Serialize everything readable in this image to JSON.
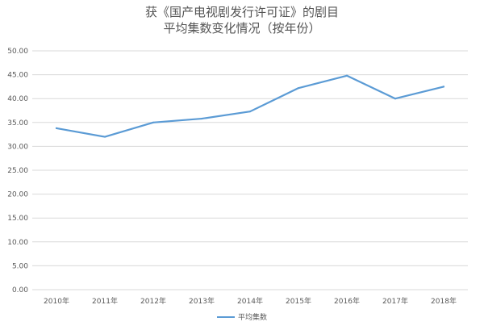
{
  "chart_data": {
    "type": "line",
    "title": "获《国产电视剧发行许可证》的剧目",
    "subtitle": "平均集数变化情况（按年份）",
    "xlabel": "",
    "ylabel": "",
    "categories": [
      "2010年",
      "2011年",
      "2012年",
      "2013年",
      "2014年",
      "2015年",
      "2016年",
      "2017年",
      "2018年"
    ],
    "series": [
      {
        "name": "平均集数",
        "values": [
          33.8,
          32.0,
          35.0,
          35.8,
          37.3,
          42.2,
          44.8,
          40.0,
          42.5
        ],
        "color": "#5b9bd5"
      }
    ],
    "ylim": [
      0,
      50
    ],
    "yticks": [
      "0.00",
      "5.00",
      "10.00",
      "15.00",
      "20.00",
      "25.00",
      "30.00",
      "35.00",
      "40.00",
      "45.00",
      "50.00"
    ],
    "grid": true,
    "legend": "bottom"
  },
  "colors": {
    "gridline": "#d9d9d9",
    "series": "#5b9bd5"
  }
}
